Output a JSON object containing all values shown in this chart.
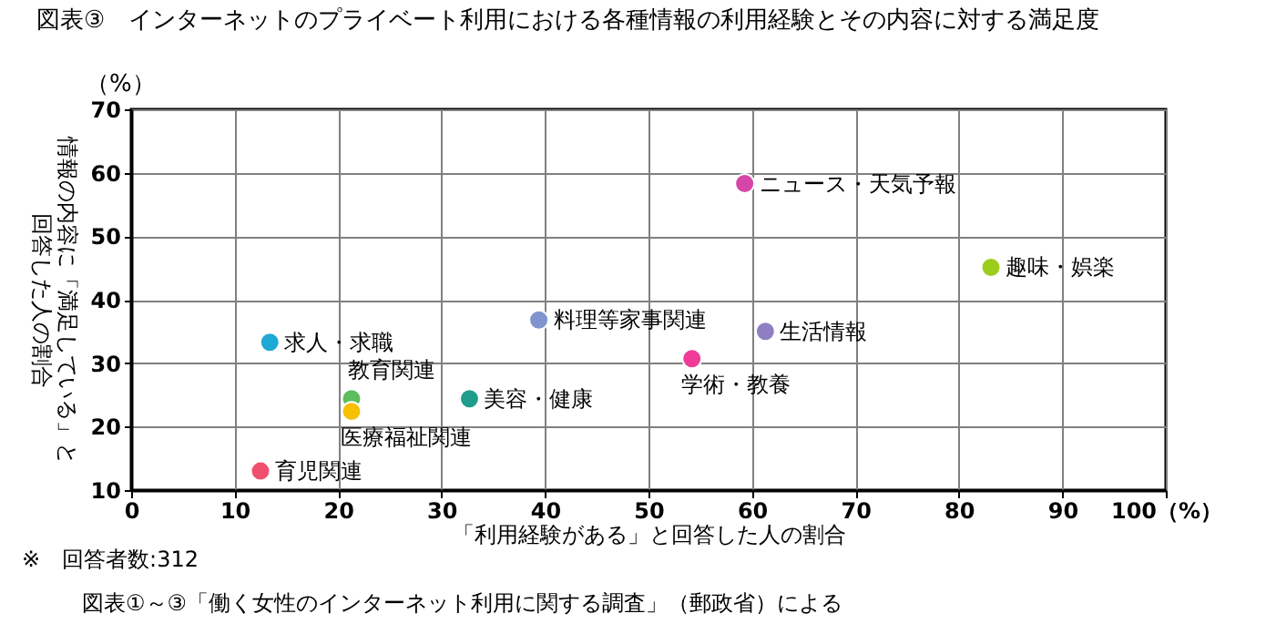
{
  "chart_data": {
    "type": "scatter",
    "title": "図表③　インターネットのプライベート利用における各種情報の利用経験とその内容に対する満足度",
    "xlabel": "「利用経験がある」と回答した人の割合",
    "ylabel": "情報の内容に「満足している」と回答した人の割合",
    "annotations": [
      "（%）",
      "※　回答者数:312",
      "図表①～③「働く女性のインターネット利用に関する調査」（郵政省）による"
    ],
    "xlim": [
      0,
      100
    ],
    "xticks": [
      0,
      10,
      20,
      30,
      40,
      50,
      60,
      70,
      80,
      90,
      {
        "value": 100,
        "label": "100（%）"
      }
    ],
    "ylim": [
      10,
      70
    ],
    "yticks": [
      10,
      20,
      30,
      40,
      50,
      60,
      70
    ],
    "grid": true,
    "legend": false,
    "marker": "circle",
    "series": [
      {
        "name": "ニュース・天気予報",
        "color": "#d645a8",
        "x": [
          59.3
        ],
        "values": [
          58.3
        ]
      },
      {
        "name": "趣味・娯楽",
        "color": "#9ccc1c",
        "x": [
          83.1
        ],
        "values": [
          45.1
        ]
      },
      {
        "name": "料理等家事関連",
        "color": "#7f93cf",
        "x": [
          39.4
        ],
        "values": [
          36.8
        ]
      },
      {
        "name": "求人・求職",
        "color": "#1ea8d6",
        "x": [
          13.4
        ],
        "values": [
          33.3
        ]
      },
      {
        "name": "生活情報",
        "color": "#8f7fc2",
        "x": [
          61.3
        ],
        "values": [
          35.0
        ]
      },
      {
        "name": "学術・教養",
        "color": "#f03c98",
        "x": [
          54.2
        ],
        "values": [
          30.7
        ]
      },
      {
        "name": "教育関連",
        "color": "#5cbd5c",
        "x": [
          21.3
        ],
        "values": [
          24.4
        ]
      },
      {
        "name": "医療福祉関連",
        "color": "#f5c000",
        "x": [
          21.3
        ],
        "values": [
          22.4
        ]
      },
      {
        "name": "美容・健康",
        "color": "#1f9c8c",
        "x": [
          32.7
        ],
        "values": [
          24.4
        ]
      },
      {
        "name": "育児関連",
        "color": "#f0506e",
        "x": [
          12.5
        ],
        "values": [
          13.0
        ]
      }
    ]
  }
}
